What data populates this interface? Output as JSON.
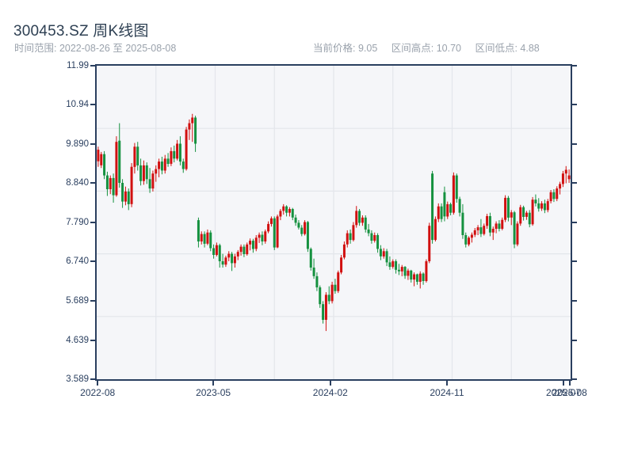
{
  "header": {
    "title": "300453.SZ 周K线图",
    "time_range": "时间范围: 2022-08-26 至 2025-08-08",
    "stats": [
      {
        "label": "当前价格",
        "text": "当前价格: 9.05"
      },
      {
        "label": "区间高点",
        "text": "区间高点: 10.70"
      },
      {
        "label": "区间低点",
        "text": "区间低点: 4.88"
      }
    ]
  },
  "chart_data": {
    "type": "candlestick",
    "symbol": "300453.SZ",
    "period": "周K线",
    "frequency": "weekly",
    "start_date": "2022-08-26",
    "end_date": "2025-08-08",
    "current_price": 9.05,
    "range_high": 10.7,
    "range_low": 4.88,
    "y_range": [
      3.589,
      11.99
    ],
    "y_ticks": [
      "11.99",
      "10.94",
      "9.890",
      "8.840",
      "7.790",
      "6.740",
      "5.689",
      "4.639",
      "3.589"
    ],
    "x_ticks": [
      {
        "label": "2022-08",
        "pos": 0.002
      },
      {
        "label": "2023-05",
        "pos": 0.246
      },
      {
        "label": "2024-02",
        "pos": 0.493
      },
      {
        "label": "2024-11",
        "pos": 0.739
      },
      {
        "label": "2025-07",
        "pos": 0.985
      },
      {
        "label": "2025-08",
        "pos": 0.998
      }
    ],
    "grid": {
      "v_divisions": 8,
      "h_divisions": 5
    },
    "colors": {
      "up": "#d11010",
      "down": "#15913f",
      "axis": "#2a3f5f",
      "grid": "#e3e6eb",
      "plot_bg": "#f5f6f9"
    },
    "ohlc_format": [
      "open",
      "high",
      "low",
      "close"
    ],
    "candles": [
      [
        9.43,
        9.82,
        9.28,
        9.74
      ],
      [
        9.32,
        9.68,
        9.25,
        9.62
      ],
      [
        9.62,
        9.7,
        8.95,
        9.05
      ],
      [
        9.05,
        9.15,
        8.5,
        8.68
      ],
      [
        8.68,
        9.05,
        8.55,
        8.98
      ],
      [
        8.98,
        9.1,
        8.32,
        8.52
      ],
      [
        8.52,
        10.1,
        8.48,
        9.95
      ],
      [
        9.98,
        10.45,
        8.72,
        8.85
      ],
      [
        8.85,
        8.95,
        8.18,
        8.35
      ],
      [
        8.35,
        8.75,
        8.25,
        8.62
      ],
      [
        8.62,
        8.7,
        8.12,
        8.28
      ],
      [
        8.28,
        9.38,
        8.2,
        9.28
      ],
      [
        9.28,
        9.92,
        9.1,
        9.82
      ],
      [
        9.82,
        9.95,
        9.18,
        9.32
      ],
      [
        9.32,
        9.5,
        8.78,
        8.9
      ],
      [
        8.9,
        9.45,
        8.8,
        9.32
      ],
      [
        9.32,
        9.4,
        8.82,
        8.95
      ],
      [
        8.95,
        9.25,
        8.58,
        8.7
      ],
      [
        8.7,
        9.18,
        8.62,
        9.1
      ],
      [
        9.1,
        9.32,
        8.88,
        9.22
      ],
      [
        9.22,
        9.5,
        9.0,
        9.42
      ],
      [
        9.42,
        9.55,
        9.08,
        9.18
      ],
      [
        9.18,
        9.6,
        9.1,
        9.5
      ],
      [
        9.5,
        9.65,
        9.28,
        9.36
      ],
      [
        9.36,
        9.8,
        9.3,
        9.7
      ],
      [
        9.7,
        9.85,
        9.4,
        9.5
      ],
      [
        9.5,
        10.0,
        9.45,
        9.9
      ],
      [
        9.9,
        10.1,
        9.32,
        9.42
      ],
      [
        9.42,
        9.5,
        9.12,
        9.22
      ],
      [
        9.22,
        10.35,
        9.18,
        10.28
      ],
      [
        10.28,
        10.55,
        10.0,
        10.45
      ],
      [
        10.45,
        10.7,
        9.95,
        10.6
      ],
      [
        10.6,
        10.65,
        9.68,
        9.9
      ],
      [
        7.85,
        7.92,
        7.12,
        7.28
      ],
      [
        7.28,
        7.55,
        7.2,
        7.48
      ],
      [
        7.48,
        7.55,
        7.12,
        7.22
      ],
      [
        7.22,
        7.6,
        7.18,
        7.52
      ],
      [
        7.52,
        7.58,
        7.02,
        7.1
      ],
      [
        7.1,
        7.2,
        6.82,
        6.92
      ],
      [
        6.92,
        7.25,
        6.88,
        7.18
      ],
      [
        7.18,
        7.22,
        6.58,
        6.75
      ],
      [
        6.75,
        6.95,
        6.58,
        6.66
      ],
      [
        6.66,
        6.9,
        6.6,
        6.85
      ],
      [
        6.85,
        7.02,
        6.75,
        6.95
      ],
      [
        6.95,
        7.0,
        6.49,
        6.7
      ],
      [
        6.7,
        6.95,
        6.58,
        6.88
      ],
      [
        6.88,
        7.05,
        6.78,
        7.0
      ],
      [
        7.0,
        7.2,
        6.9,
        7.14
      ],
      [
        7.14,
        7.2,
        6.86,
        6.94
      ],
      [
        6.94,
        7.25,
        6.9,
        7.2
      ],
      [
        7.2,
        7.36,
        7.04,
        7.3
      ],
      [
        7.3,
        7.35,
        6.98,
        7.08
      ],
      [
        7.08,
        7.45,
        7.02,
        7.38
      ],
      [
        7.38,
        7.52,
        7.24,
        7.46
      ],
      [
        7.46,
        7.55,
        7.18,
        7.28
      ],
      [
        7.28,
        7.6,
        7.22,
        7.55
      ],
      [
        7.55,
        7.82,
        7.5,
        7.75
      ],
      [
        7.75,
        7.95,
        7.68,
        7.9
      ],
      [
        7.9,
        7.95,
        7.05,
        7.12
      ],
      [
        7.12,
        8.0,
        7.1,
        7.95
      ],
      [
        7.95,
        8.15,
        7.85,
        8.1
      ],
      [
        8.1,
        8.28,
        8.0,
        8.22
      ],
      [
        8.22,
        8.25,
        7.95,
        8.05
      ],
      [
        8.05,
        8.2,
        7.95,
        8.15
      ],
      [
        8.15,
        8.18,
        7.85,
        7.92
      ],
      [
        7.92,
        8.0,
        7.7,
        7.78
      ],
      [
        7.78,
        7.85,
        7.6,
        7.65
      ],
      [
        7.65,
        7.72,
        7.42,
        7.48
      ],
      [
        7.48,
        7.85,
        7.44,
        7.8
      ],
      [
        7.8,
        7.83,
        7.0,
        7.08
      ],
      [
        7.08,
        7.12,
        6.5,
        6.58
      ],
      [
        6.58,
        6.82,
        6.28,
        6.35
      ],
      [
        6.35,
        6.45,
        5.95,
        6.05
      ],
      [
        6.05,
        6.1,
        5.5,
        5.6
      ],
      [
        5.6,
        5.68,
        5.08,
        5.18
      ],
      [
        5.18,
        5.92,
        4.88,
        5.85
      ],
      [
        5.85,
        6.08,
        5.6,
        5.68
      ],
      [
        5.68,
        6.2,
        5.62,
        6.12
      ],
      [
        6.12,
        6.28,
        5.88,
        5.95
      ],
      [
        5.95,
        6.5,
        5.9,
        6.45
      ],
      [
        6.45,
        6.92,
        6.4,
        6.85
      ],
      [
        6.85,
        7.28,
        6.8,
        7.2
      ],
      [
        7.2,
        7.58,
        7.12,
        7.5
      ],
      [
        7.5,
        7.6,
        7.22,
        7.32
      ],
      [
        7.32,
        7.8,
        7.28,
        7.72
      ],
      [
        7.72,
        8.23,
        7.65,
        8.1
      ],
      [
        8.1,
        8.15,
        7.7,
        7.78
      ],
      [
        7.78,
        7.98,
        7.7,
        7.92
      ],
      [
        7.92,
        7.98,
        7.52,
        7.6
      ],
      [
        7.6,
        7.75,
        7.42,
        7.5
      ],
      [
        7.5,
        7.58,
        7.22,
        7.3
      ],
      [
        7.3,
        7.52,
        7.25,
        7.45
      ],
      [
        7.45,
        7.5,
        6.98,
        7.08
      ],
      [
        7.08,
        7.18,
        6.78,
        6.88
      ],
      [
        6.88,
        7.1,
        6.82,
        7.02
      ],
      [
        7.02,
        7.08,
        6.62,
        6.72
      ],
      [
        6.72,
        6.88,
        6.52,
        6.6
      ],
      [
        6.6,
        6.8,
        6.55,
        6.75
      ],
      [
        6.75,
        6.8,
        6.42,
        6.52
      ],
      [
        6.52,
        6.68,
        6.38,
        6.48
      ],
      [
        6.48,
        6.65,
        6.35,
        6.6
      ],
      [
        6.6,
        6.62,
        6.28,
        6.36
      ],
      [
        6.36,
        6.55,
        6.25,
        6.5
      ],
      [
        6.5,
        6.52,
        6.18,
        6.26
      ],
      [
        6.26,
        6.45,
        6.08,
        6.4
      ],
      [
        6.4,
        6.42,
        6.12,
        6.2
      ],
      [
        6.2,
        6.48,
        6.02,
        6.42
      ],
      [
        6.42,
        6.45,
        6.12,
        6.22
      ],
      [
        6.22,
        6.8,
        6.18,
        6.75
      ],
      [
        6.75,
        7.78,
        6.7,
        7.7
      ],
      [
        9.1,
        9.17,
        7.22,
        7.32
      ],
      [
        7.32,
        7.95,
        7.28,
        7.88
      ],
      [
        7.88,
        8.3,
        7.8,
        8.22
      ],
      [
        8.22,
        8.3,
        7.8,
        7.88
      ],
      [
        8.6,
        8.75,
        7.82,
        7.95
      ],
      [
        7.95,
        8.35,
        7.88,
        8.28
      ],
      [
        8.28,
        8.32,
        7.98,
        8.05
      ],
      [
        8.05,
        9.13,
        8.0,
        9.05
      ],
      [
        9.05,
        9.1,
        8.32,
        8.42
      ],
      [
        8.42,
        8.48,
        7.95,
        8.05
      ],
      [
        8.05,
        8.28,
        7.35,
        7.45
      ],
      [
        7.45,
        7.52,
        7.12,
        7.2
      ],
      [
        7.2,
        7.42,
        7.15,
        7.38
      ],
      [
        7.38,
        7.52,
        7.25,
        7.46
      ],
      [
        7.46,
        7.64,
        7.4,
        7.58
      ],
      [
        7.58,
        7.72,
        7.45,
        7.66
      ],
      [
        7.66,
        7.88,
        7.4,
        7.48
      ],
      [
        7.48,
        7.76,
        7.44,
        7.7
      ],
      [
        7.7,
        8.02,
        7.62,
        7.96
      ],
      [
        7.96,
        8.05,
        7.42,
        7.52
      ],
      [
        7.52,
        7.68,
        7.32,
        7.62
      ],
      [
        7.62,
        7.82,
        7.5,
        7.76
      ],
      [
        7.76,
        7.85,
        7.55,
        7.62
      ],
      [
        7.62,
        7.92,
        7.58,
        7.86
      ],
      [
        7.86,
        8.52,
        7.8,
        8.45
      ],
      [
        8.45,
        8.5,
        7.82,
        7.92
      ],
      [
        7.92,
        8.12,
        7.72,
        8.06
      ],
      [
        8.06,
        8.1,
        7.1,
        7.2
      ],
      [
        7.2,
        7.82,
        7.15,
        7.76
      ],
      [
        7.76,
        8.26,
        7.7,
        8.2
      ],
      [
        8.2,
        8.24,
        7.84,
        7.94
      ],
      [
        7.94,
        8.1,
        7.86,
        8.05
      ],
      [
        8.05,
        8.12,
        7.66,
        7.74
      ],
      [
        7.74,
        8.47,
        7.7,
        8.4
      ],
      [
        8.4,
        8.54,
        8.22,
        8.3
      ],
      [
        8.3,
        8.44,
        8.08,
        8.16
      ],
      [
        8.16,
        8.36,
        8.1,
        8.3
      ],
      [
        8.3,
        8.4,
        8.04,
        8.12
      ],
      [
        8.12,
        8.42,
        8.06,
        8.36
      ],
      [
        8.36,
        8.66,
        8.3,
        8.6
      ],
      [
        8.6,
        8.68,
        8.34,
        8.42
      ],
      [
        8.42,
        8.76,
        8.36,
        8.7
      ],
      [
        8.7,
        8.88,
        8.54,
        8.82
      ],
      [
        8.82,
        9.17,
        8.74,
        9.1
      ],
      [
        9.1,
        9.3,
        8.84,
        9.2
      ],
      [
        8.95,
        9.21,
        8.85,
        9.05
      ]
    ]
  }
}
